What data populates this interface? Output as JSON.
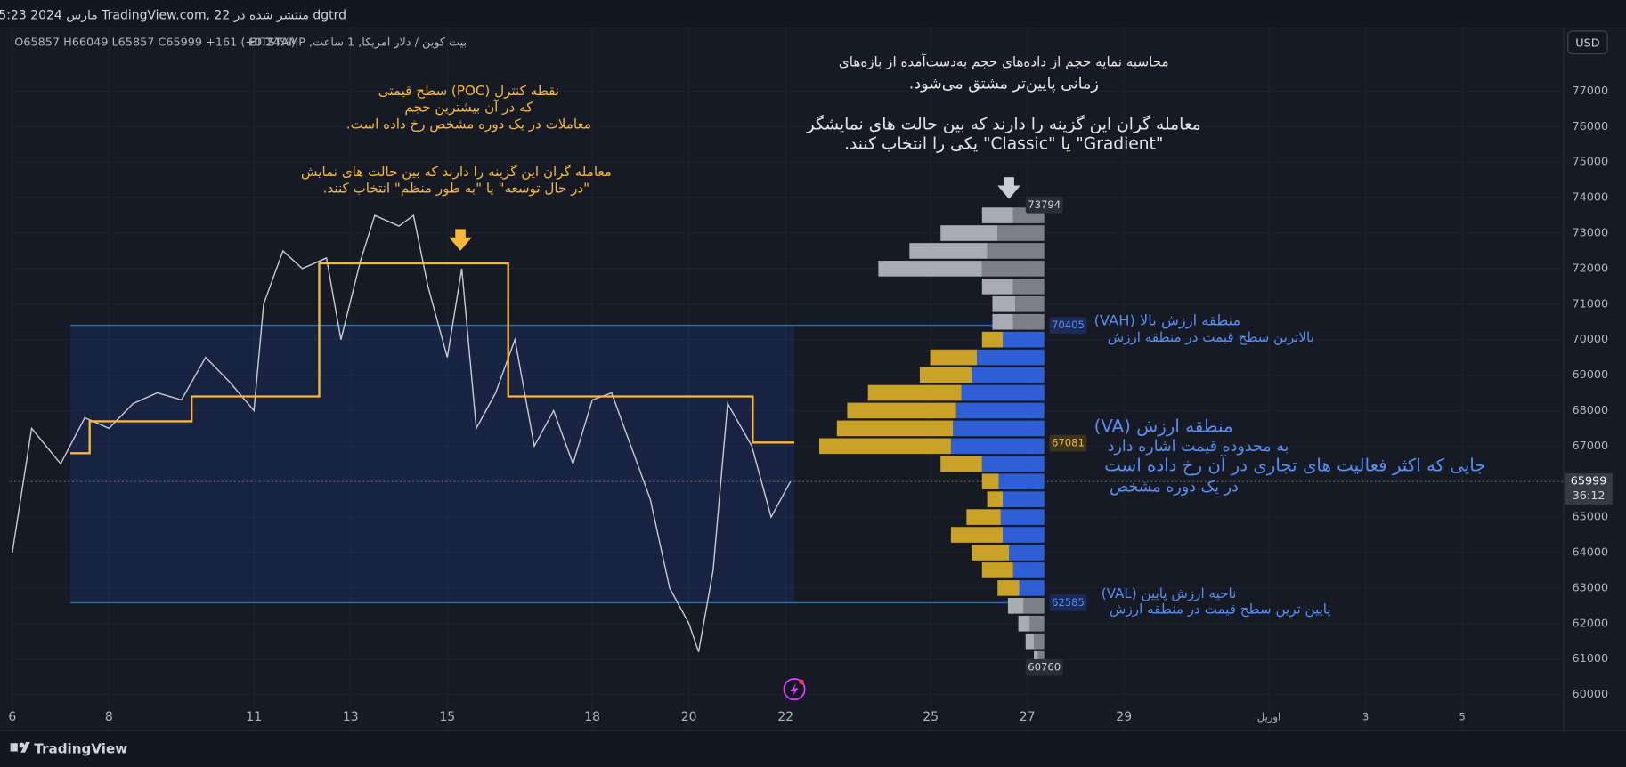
{
  "header": {
    "published": "dgtrd منتشر شده در TradingView.com, 22 مارس 2024 05:23 UTC-4",
    "symbol": "بیت کوین / دلار آمریکا, 1 ساعت, BITSTAMP",
    "ohlc": "O65857 H66049 L65857 C65999 +161 (+0.24%)",
    "currency": "USD"
  },
  "footer": {
    "brand": "TradingView"
  },
  "chart_data": {
    "type": "line",
    "xlim": [
      5.96,
      38.1
    ],
    "xticks": [
      6,
      8,
      11,
      13,
      15,
      18,
      20,
      22,
      25,
      27,
      29,
      {
        "value": 32,
        "label": "اوریل"
      },
      {
        "value": 34,
        "label": "3"
      },
      {
        "value": 36,
        "label": "5"
      }
    ],
    "ylim": [
      58980,
      78780
    ],
    "yticks": [
      60000,
      61000,
      62000,
      63000,
      64000,
      65000,
      66000,
      67000,
      68000,
      69000,
      70000,
      71000,
      72000,
      73000,
      74000,
      75000,
      76000,
      77000
    ],
    "grid": true,
    "price": {
      "color": "#c9ccd4",
      "x": [
        6.0,
        6.4,
        7.0,
        7.5,
        8.0,
        8.5,
        9.0,
        9.5,
        10.0,
        10.5,
        11.0,
        11.2,
        11.6,
        12.0,
        12.5,
        12.8,
        13.2,
        13.5,
        14.0,
        14.3,
        14.6,
        15.0,
        15.3,
        15.6,
        16.0,
        16.4,
        16.8,
        17.2,
        17.6,
        18.0,
        18.4,
        18.8,
        19.2,
        19.6,
        20.0,
        20.2,
        20.5,
        20.8,
        21.3,
        21.7,
        22.1
      ],
      "values": [
        64000,
        67500,
        66500,
        67800,
        67500,
        68200,
        68500,
        68300,
        69500,
        68800,
        68000,
        71000,
        72500,
        72000,
        72300,
        70000,
        72200,
        73500,
        73200,
        73500,
        71500,
        69500,
        72000,
        67500,
        68500,
        70000,
        67000,
        68000,
        66500,
        68300,
        68500,
        67000,
        65500,
        63000,
        62000,
        61200,
        63500,
        68200,
        67000,
        65000,
        66000
      ]
    },
    "developing_poc": {
      "color": "#f5b83d",
      "x": [
        7.2,
        7.6,
        8.27,
        9.71,
        12.35,
        16.26,
        21.32,
        22.18
      ],
      "values": [
        66800,
        67700,
        67700,
        68400,
        72150,
        68400,
        67100,
        67100
      ]
    },
    "profile": {
      "rows": [
        61000,
        61500,
        62000,
        62500,
        63000,
        63500,
        64000,
        64500,
        65000,
        65500,
        66000,
        66500,
        67000,
        67500,
        68000,
        68500,
        69000,
        69500,
        70000,
        70500,
        71000,
        71500,
        72000,
        72500,
        73000,
        73500
      ],
      "series": [
        {
          "name": "up",
          "color": "#2f5fd6",
          "outside_color": "#7d8088",
          "values": [
            6,
            10,
            14,
            20,
            24,
            30,
            34,
            40,
            42,
            40,
            44,
            60,
            90,
            88,
            85,
            80,
            70,
            65,
            40,
            30,
            28,
            30,
            60,
            55,
            45,
            30
          ]
        },
        {
          "name": "down",
          "color": "#c9a227",
          "outside_color": "#a9acb3",
          "values": [
            4,
            8,
            11,
            15,
            21,
            30,
            36,
            50,
            33,
            15,
            16,
            40,
            127,
            112,
            105,
            90,
            50,
            45,
            20,
            20,
            22,
            30,
            100,
            75,
            55,
            30
          ]
        }
      ]
    },
    "levels": {
      "high": 73794,
      "low": 60760,
      "vah": 70405,
      "val": 62585,
      "poc": 67081,
      "last": 65999,
      "countdown": "36:12"
    },
    "annotations": [
      {
        "lines": [
          "نقطه کنترل (POC) سطح قیمتی",
          "که در آن بیشترین حجم",
          "معاملات در یک دوره مشخص رخ داده است."
        ]
      },
      {
        "lines": [
          "معامله گران این گزینه را دارند که بین حالت های نمایش",
          "\"در حال توسعه\" یا \"به طور منظم\" انتخاب کنند."
        ]
      },
      {
        "lines": [
          "محاسبه نمایه حجم از داده‌های حجم به‌دست‌آمده از بازه‌های",
          "زمانی پایین‌تر مشتق می‌شود."
        ]
      },
      {
        "lines": [
          "معامله گران این گزینه را دارند که بین حالت های نمایشگر",
          "\"Gradient\" یا \"Classic\" یکی را انتخاب کنند."
        ]
      },
      {
        "lines": [
          "منطقه ارزش بالا (VAH)",
          "بالاترین سطح قیمت در منطقه ارزش"
        ]
      },
      {
        "lines": [
          "منطقه ارزش (VA)",
          "به محدوده قیمت اشاره دارد",
          "جایی که اکثر فعالیت های تجاری در آن رخ داده است",
          "در یک دوره مشخص"
        ]
      },
      {
        "lines": [
          "ناحیه ارزش پایین (VAL)",
          "پایین ترین سطح قیمت در منطقه ارزش"
        ]
      }
    ]
  }
}
